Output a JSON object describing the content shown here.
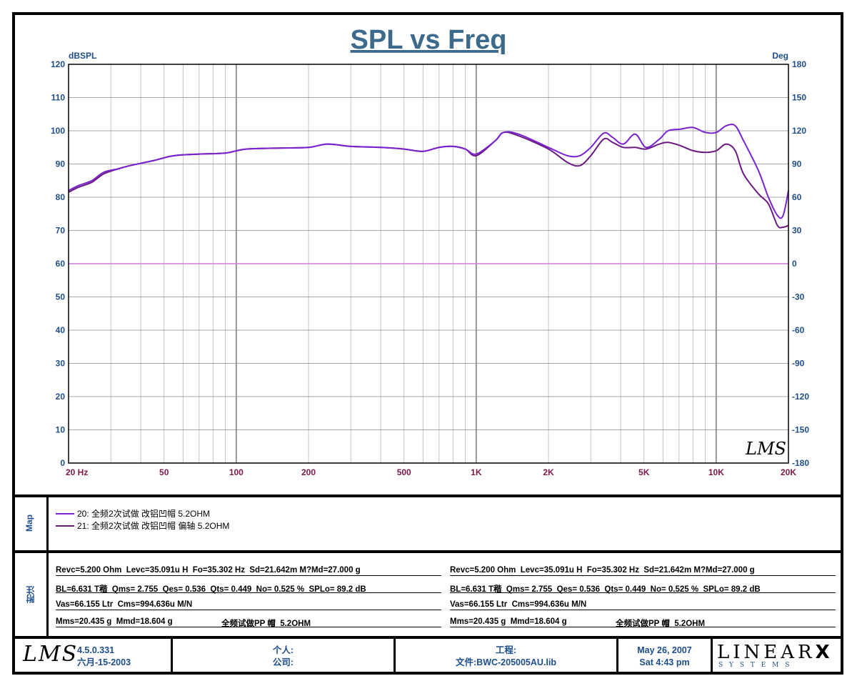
{
  "chart_data": {
    "type": "line",
    "title": "SPL vs Freq",
    "ylabel_left": "dBSPL",
    "ylabel_right": "Deg",
    "x_scale": "log",
    "xlim": [
      20,
      20000
    ],
    "ylim_left": [
      0,
      120
    ],
    "ylim_right": [
      -180,
      180
    ],
    "x_tick_labels": [
      {
        "value": 20,
        "label": "20  Hz"
      },
      {
        "value": 50,
        "label": "50"
      },
      {
        "value": 100,
        "label": "100"
      },
      {
        "value": 200,
        "label": "200"
      },
      {
        "value": 500,
        "label": "500"
      },
      {
        "value": 1000,
        "label": "1K"
      },
      {
        "value": 2000,
        "label": "2K"
      },
      {
        "value": 5000,
        "label": "5K"
      },
      {
        "value": 10000,
        "label": "10K"
      },
      {
        "value": 20000,
        "label": "20K"
      }
    ],
    "y_left_ticks": [
      0,
      10,
      20,
      30,
      40,
      50,
      60,
      70,
      80,
      90,
      100,
      110,
      120
    ],
    "y_right_ticks": [
      -180,
      -150,
      -120,
      -90,
      -60,
      -30,
      0,
      30,
      60,
      90,
      120,
      150,
      180
    ],
    "grid": true,
    "series": [
      {
        "name": "20: 全频2次试做 改铝凹帽   5.2OHM",
        "color": "#7b22d0",
        "points": [
          [
            20,
            82
          ],
          [
            22,
            83.5
          ],
          [
            25,
            85
          ],
          [
            28,
            87.5
          ],
          [
            32,
            88.5
          ],
          [
            36,
            89.5
          ],
          [
            45,
            91
          ],
          [
            55,
            92.5
          ],
          [
            70,
            93
          ],
          [
            90,
            93.3
          ],
          [
            110,
            94.5
          ],
          [
            150,
            94.8
          ],
          [
            200,
            95
          ],
          [
            240,
            96
          ],
          [
            300,
            95.3
          ],
          [
            400,
            95
          ],
          [
            500,
            94.5
          ],
          [
            600,
            93.8
          ],
          [
            700,
            95
          ],
          [
            800,
            95.3
          ],
          [
            900,
            94.5
          ],
          [
            1000,
            93
          ],
          [
            1200,
            97
          ],
          [
            1300,
            99.5
          ],
          [
            1500,
            99
          ],
          [
            2000,
            95
          ],
          [
            2400,
            92.5
          ],
          [
            2700,
            92.5
          ],
          [
            3000,
            95
          ],
          [
            3400,
            99.3
          ],
          [
            3700,
            98
          ],
          [
            4100,
            96
          ],
          [
            4600,
            99
          ],
          [
            5100,
            95
          ],
          [
            5800,
            97.5
          ],
          [
            6300,
            100
          ],
          [
            7100,
            100.5
          ],
          [
            8000,
            101
          ],
          [
            9000,
            99.5
          ],
          [
            10000,
            99.5
          ],
          [
            11000,
            101.5
          ],
          [
            12000,
            101.5
          ],
          [
            13000,
            97
          ],
          [
            15000,
            88
          ],
          [
            16500,
            80
          ],
          [
            18000,
            74.5
          ],
          [
            19000,
            74.5
          ],
          [
            20000,
            82
          ]
        ]
      },
      {
        "name": "21: 全频2次试做 改铝凹帽  偏轴   5.2OHM",
        "color": "#6a1a80",
        "points": [
          [
            20,
            81.5
          ],
          [
            22,
            83
          ],
          [
            25,
            84.5
          ],
          [
            28,
            87
          ],
          [
            32,
            88.5
          ],
          [
            36,
            89.5
          ],
          [
            45,
            91
          ],
          [
            55,
            92.5
          ],
          [
            70,
            93
          ],
          [
            90,
            93.3
          ],
          [
            110,
            94.5
          ],
          [
            150,
            94.8
          ],
          [
            200,
            95
          ],
          [
            240,
            96
          ],
          [
            300,
            95.3
          ],
          [
            400,
            95
          ],
          [
            500,
            94.5
          ],
          [
            600,
            93.8
          ],
          [
            700,
            95
          ],
          [
            800,
            95.3
          ],
          [
            900,
            94.5
          ],
          [
            1000,
            92.5
          ],
          [
            1200,
            97
          ],
          [
            1300,
            99.5
          ],
          [
            1500,
            98.5
          ],
          [
            2000,
            94.5
          ],
          [
            2400,
            90.5
          ],
          [
            2700,
            89.5
          ],
          [
            3000,
            92.5
          ],
          [
            3400,
            97.5
          ],
          [
            3700,
            96.5
          ],
          [
            4100,
            95
          ],
          [
            4600,
            95
          ],
          [
            5100,
            94.5
          ],
          [
            5800,
            96
          ],
          [
            6300,
            96.5
          ],
          [
            7100,
            95.5
          ],
          [
            8000,
            94
          ],
          [
            9000,
            93.5
          ],
          [
            10000,
            94
          ],
          [
            11000,
            96
          ],
          [
            12000,
            94
          ],
          [
            13000,
            87
          ],
          [
            15000,
            81
          ],
          [
            16500,
            78
          ],
          [
            18000,
            71.5
          ],
          [
            19000,
            71
          ],
          [
            20000,
            71.5
          ]
        ]
      }
    ],
    "reference_line": {
      "value_deg": 0,
      "color": "#d07ad8"
    },
    "watermark": "LMS"
  },
  "colors": {
    "axis_text": "#1e4e8c",
    "x_tick_text": "#7b1a4a",
    "grid": "#b5b5b5",
    "title": "#3c6a8c"
  },
  "map_panel": {
    "side_label": "Map"
  },
  "notes_panel": {
    "side_label": "附注",
    "left": [
      "Revc=5.200 Ohm  Levc=35.091u H  Fo=35.302 Hz  Sd=21.642m M?Md=27.000 g",
      "BL=6.631 T稭  Qms= 2.755  Qes= 0.536  Qts= 0.449  No= 0.525 %  SPLo= 89.2 dB",
      "Vas=66.155 Ltr  Cms=994.636u M/N",
      "Mms=20.435 g  Mmd=18.604 g"
    ],
    "left_extra": "全频试做PP 帽  5.2OHM",
    "right": [
      "Revc=5.200 Ohm  Levc=35.091u H  Fo=35.302 Hz  Sd=21.642m M?Md=27.000 g",
      "BL=6.631 T稭  Qms= 2.755  Qes= 0.536  Qts= 0.449  No= 0.525 %  SPLo= 89.2 dB",
      "Vas=66.155 Ltr  Cms=994.636u M/N",
      "Mms=20.435 g  Mmd=18.604 g"
    ],
    "right_extra": "全频试做PP 帽  5.2OHM"
  },
  "footer": {
    "logo": "LMS",
    "version": "4.5.0.331",
    "build_date": "六月-15-2003",
    "personal_label": "个人:",
    "company_label": "公司:",
    "project_label": "工程:",
    "file_label": "文件:BWC-205005AU.lib",
    "date": "May 26, 2007",
    "time": "Sat  4:43 pm",
    "brand": "LINEAR",
    "brand_x": "X",
    "brand_sub": "S  Y  S  T  E  M  S"
  }
}
